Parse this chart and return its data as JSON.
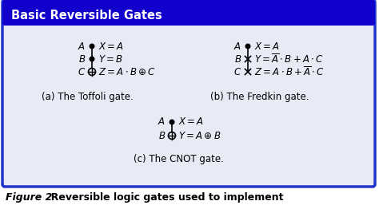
{
  "title": "Basic Reversible Gates",
  "title_bg": "#1100cc",
  "title_color": "#ffffff",
  "box_bg": "#e8eaf6",
  "box_border": "#2233cc",
  "figure_bg": "#ffffff",
  "caption_bottom": "Figure 2",
  "caption_rest": "  Reversible logic gates used to implement",
  "toffoli_label": "(a) The Toffoli gate.",
  "fredkin_label": "(b) The Fredkin gate.",
  "cnot_label": "(c) The CNOT gate.",
  "figsize": [
    4.74,
    2.62
  ],
  "dpi": 100
}
